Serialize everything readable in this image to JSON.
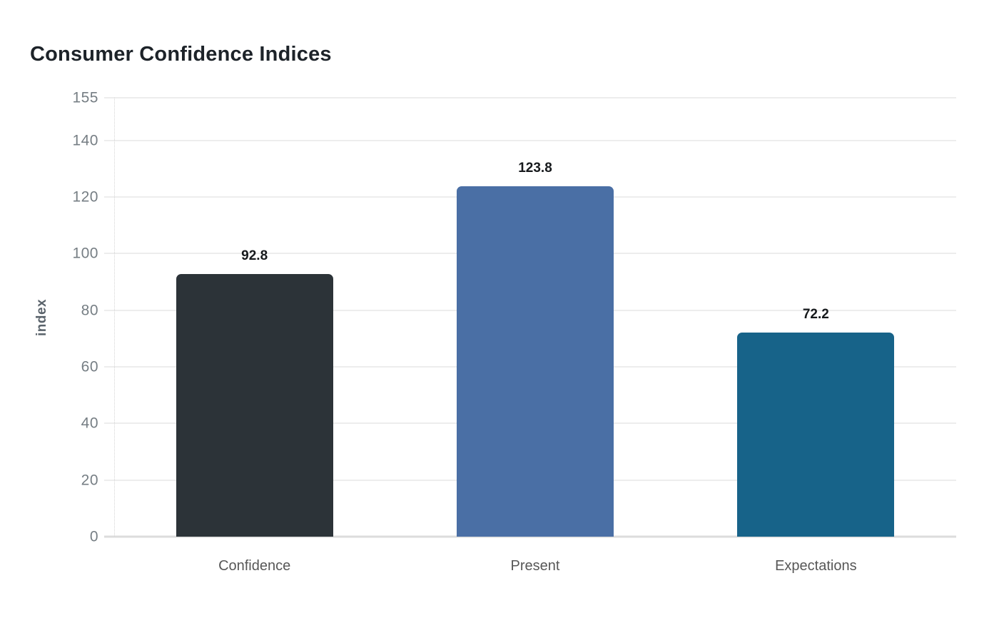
{
  "chart_data": {
    "type": "bar",
    "title": "Consumer Confidence Indices",
    "categories": [
      "Confidence",
      "Present",
      "Expectations"
    ],
    "values": [
      92.8,
      123.8,
      72.2
    ],
    "value_labels": [
      "92.8",
      "123.8",
      "72.2"
    ],
    "bar_colors": [
      "#2c3338",
      "#4a6fa5",
      "#176389"
    ],
    "xlabel": "",
    "ylabel": "index",
    "ylim": [
      0,
      155
    ],
    "yticks": [
      0,
      20,
      40,
      60,
      80,
      100,
      120,
      140,
      155
    ],
    "grid": "horizontal",
    "legend": "none",
    "background_color": "#ffffff",
    "gridline_color": "#ededed",
    "baseline_color": "#dcdcdc",
    "tick_label_color": "#767e84",
    "title_color": "#1d2329"
  }
}
